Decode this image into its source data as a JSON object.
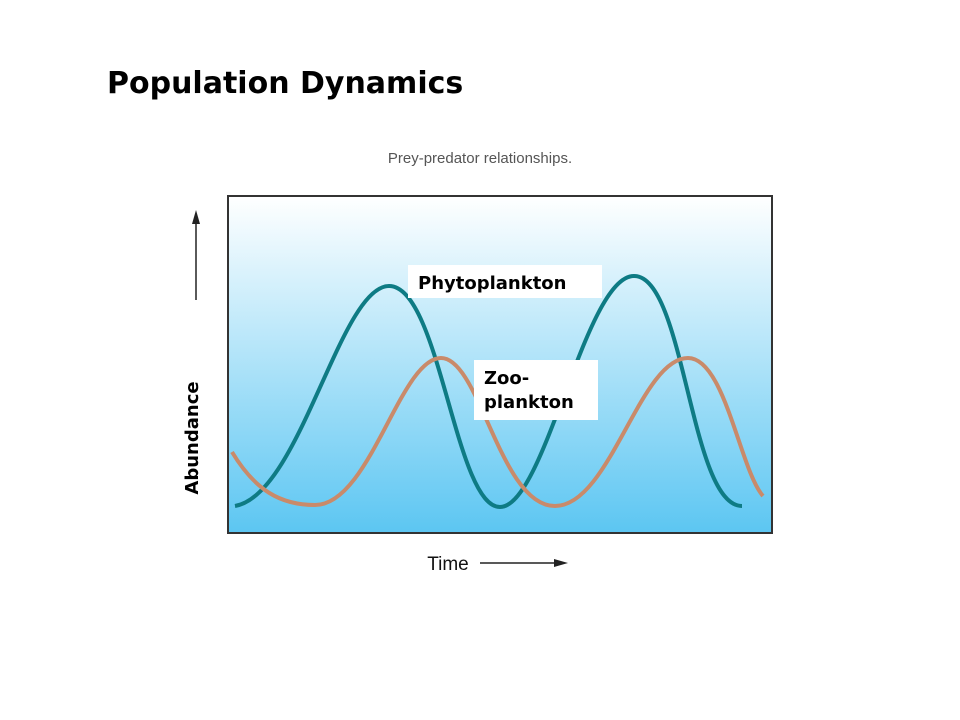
{
  "title": "Population Dynamics",
  "figure": {
    "caption": "Prey-predator relationships.",
    "y_axis_label": "Abundance",
    "x_axis_label": "Time",
    "labels": [
      "Phytoplankton",
      "Zoo-\nplankton"
    ]
  }
}
